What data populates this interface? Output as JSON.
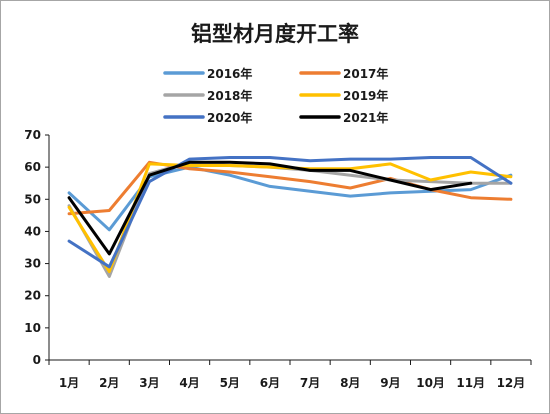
{
  "chart_data": {
    "type": "line",
    "title": "铝型材月度开工率",
    "xlabel": "",
    "ylabel": "",
    "categories": [
      "1月",
      "2月",
      "3月",
      "4月",
      "5月",
      "6月",
      "7月",
      "8月",
      "9月",
      "10月",
      "11月",
      "12月"
    ],
    "ylim": [
      0,
      70
    ],
    "yticks": [
      0,
      10,
      20,
      30,
      40,
      50,
      60,
      70
    ],
    "grid": false,
    "legend_position": "top",
    "series": [
      {
        "name": "2016年",
        "color": "#5b9bd5",
        "values": [
          52,
          40.5,
          57,
          60,
          57.5,
          54,
          52.5,
          51,
          52,
          52.5,
          53,
          57.5
        ]
      },
      {
        "name": "2017年",
        "color": "#ed7d31",
        "values": [
          45.5,
          46.5,
          61.5,
          59.5,
          58.5,
          57,
          55.5,
          53.5,
          56.5,
          53,
          50.5,
          50
        ]
      },
      {
        "name": "2018年",
        "color": "#a5a5a5",
        "values": [
          48,
          26,
          58,
          61.5,
          60.5,
          60,
          59,
          57.5,
          56,
          55.5,
          55,
          55
        ]
      },
      {
        "name": "2019年",
        "color": "#ffc000",
        "values": [
          47.5,
          27.5,
          61,
          60.5,
          60.5,
          60,
          59.5,
          59.5,
          61,
          56,
          58.5,
          57
        ]
      },
      {
        "name": "2020年",
        "color": "#4472c4",
        "values": [
          37,
          29,
          55.5,
          62.5,
          63,
          63,
          62,
          62.5,
          62.5,
          63,
          63,
          55
        ]
      },
      {
        "name": "2021年",
        "color": "#000000",
        "values": [
          50.5,
          33,
          57.5,
          61.5,
          61.5,
          61,
          59,
          59,
          56,
          53,
          55,
          null
        ]
      }
    ]
  }
}
